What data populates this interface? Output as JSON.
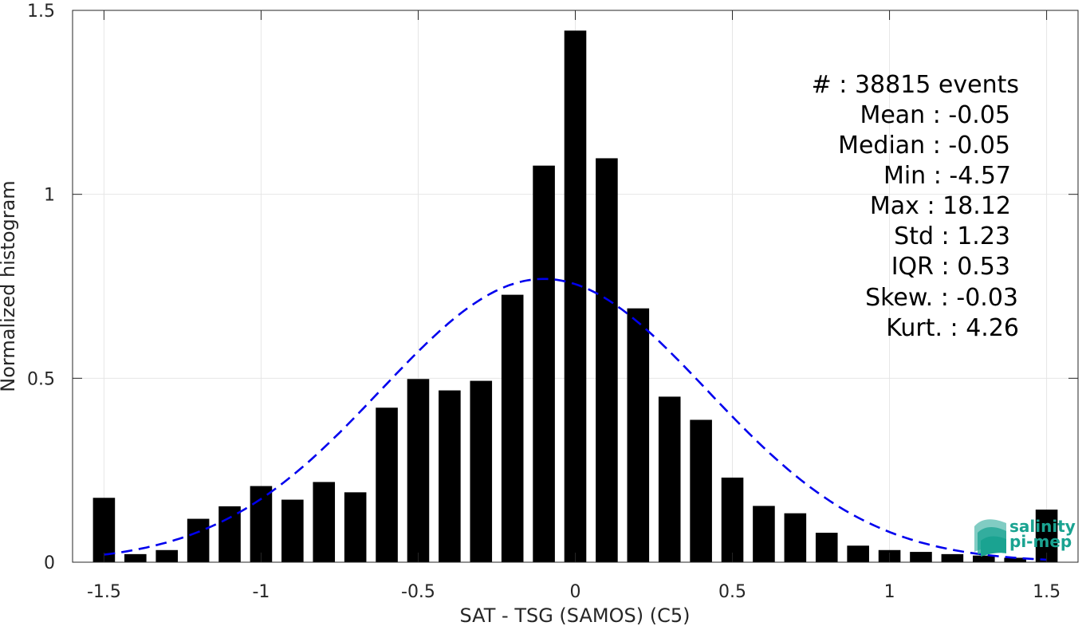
{
  "chart_data": {
    "type": "bar",
    "xlabel": "SAT - TSG (SAMOS) (C5)",
    "ylabel": "Normalized histogram",
    "xlim": [
      -1.6,
      1.6
    ],
    "ylim": [
      0,
      1.5
    ],
    "xticks": [
      -1.5,
      -1,
      -0.5,
      0,
      0.5,
      1,
      1.5
    ],
    "xtick_labels": [
      "-1.5",
      "-1",
      "-0.5",
      "0",
      "0.5",
      "1",
      "1.5"
    ],
    "yticks": [
      0,
      0.5,
      1,
      1.5
    ],
    "ytick_labels": [
      "0",
      "0.5",
      "1",
      "1.5"
    ],
    "grid": true,
    "bar_width": 0.07,
    "bar_color": "#000000",
    "bars": {
      "x": [
        -1.5,
        -1.4,
        -1.3,
        -1.2,
        -1.1,
        -1.0,
        -0.9,
        -0.8,
        -0.7,
        -0.6,
        -0.5,
        -0.4,
        -0.3,
        -0.2,
        -0.1,
        0.0,
        0.1,
        0.2,
        0.3,
        0.4,
        0.5,
        0.6,
        0.7,
        0.8,
        0.9,
        1.0,
        1.1,
        1.2,
        1.3,
        1.4,
        1.5
      ],
      "values": [
        0.175,
        0.022,
        0.033,
        0.118,
        0.152,
        0.207,
        0.17,
        0.218,
        0.19,
        0.42,
        0.498,
        0.467,
        0.493,
        0.727,
        1.078,
        1.445,
        1.098,
        0.69,
        0.45,
        0.387,
        0.23,
        0.153,
        0.133,
        0.08,
        0.045,
        0.033,
        0.028,
        0.022,
        0.018,
        0.012,
        0.143
      ]
    },
    "fit_curve": {
      "type": "gaussian",
      "mean": -0.1,
      "std": 0.52,
      "peak": 0.77,
      "x_range": [
        -1.5,
        1.5
      ],
      "color": "#0000ee",
      "style": "dashed"
    },
    "annotations": [
      "#  : 38815 events",
      "Mean : -0.05",
      "Median : -0.05",
      "Min : -4.57",
      "Max : 18.12",
      "Std : 1.23",
      "IQR : 0.53",
      "Skew. : -0.03",
      "Kurt. : 4.26"
    ]
  },
  "logo": {
    "line1": "salinity",
    "line2": "pi-mep",
    "icon": "wave-layers-icon",
    "color": "#1aa391"
  }
}
